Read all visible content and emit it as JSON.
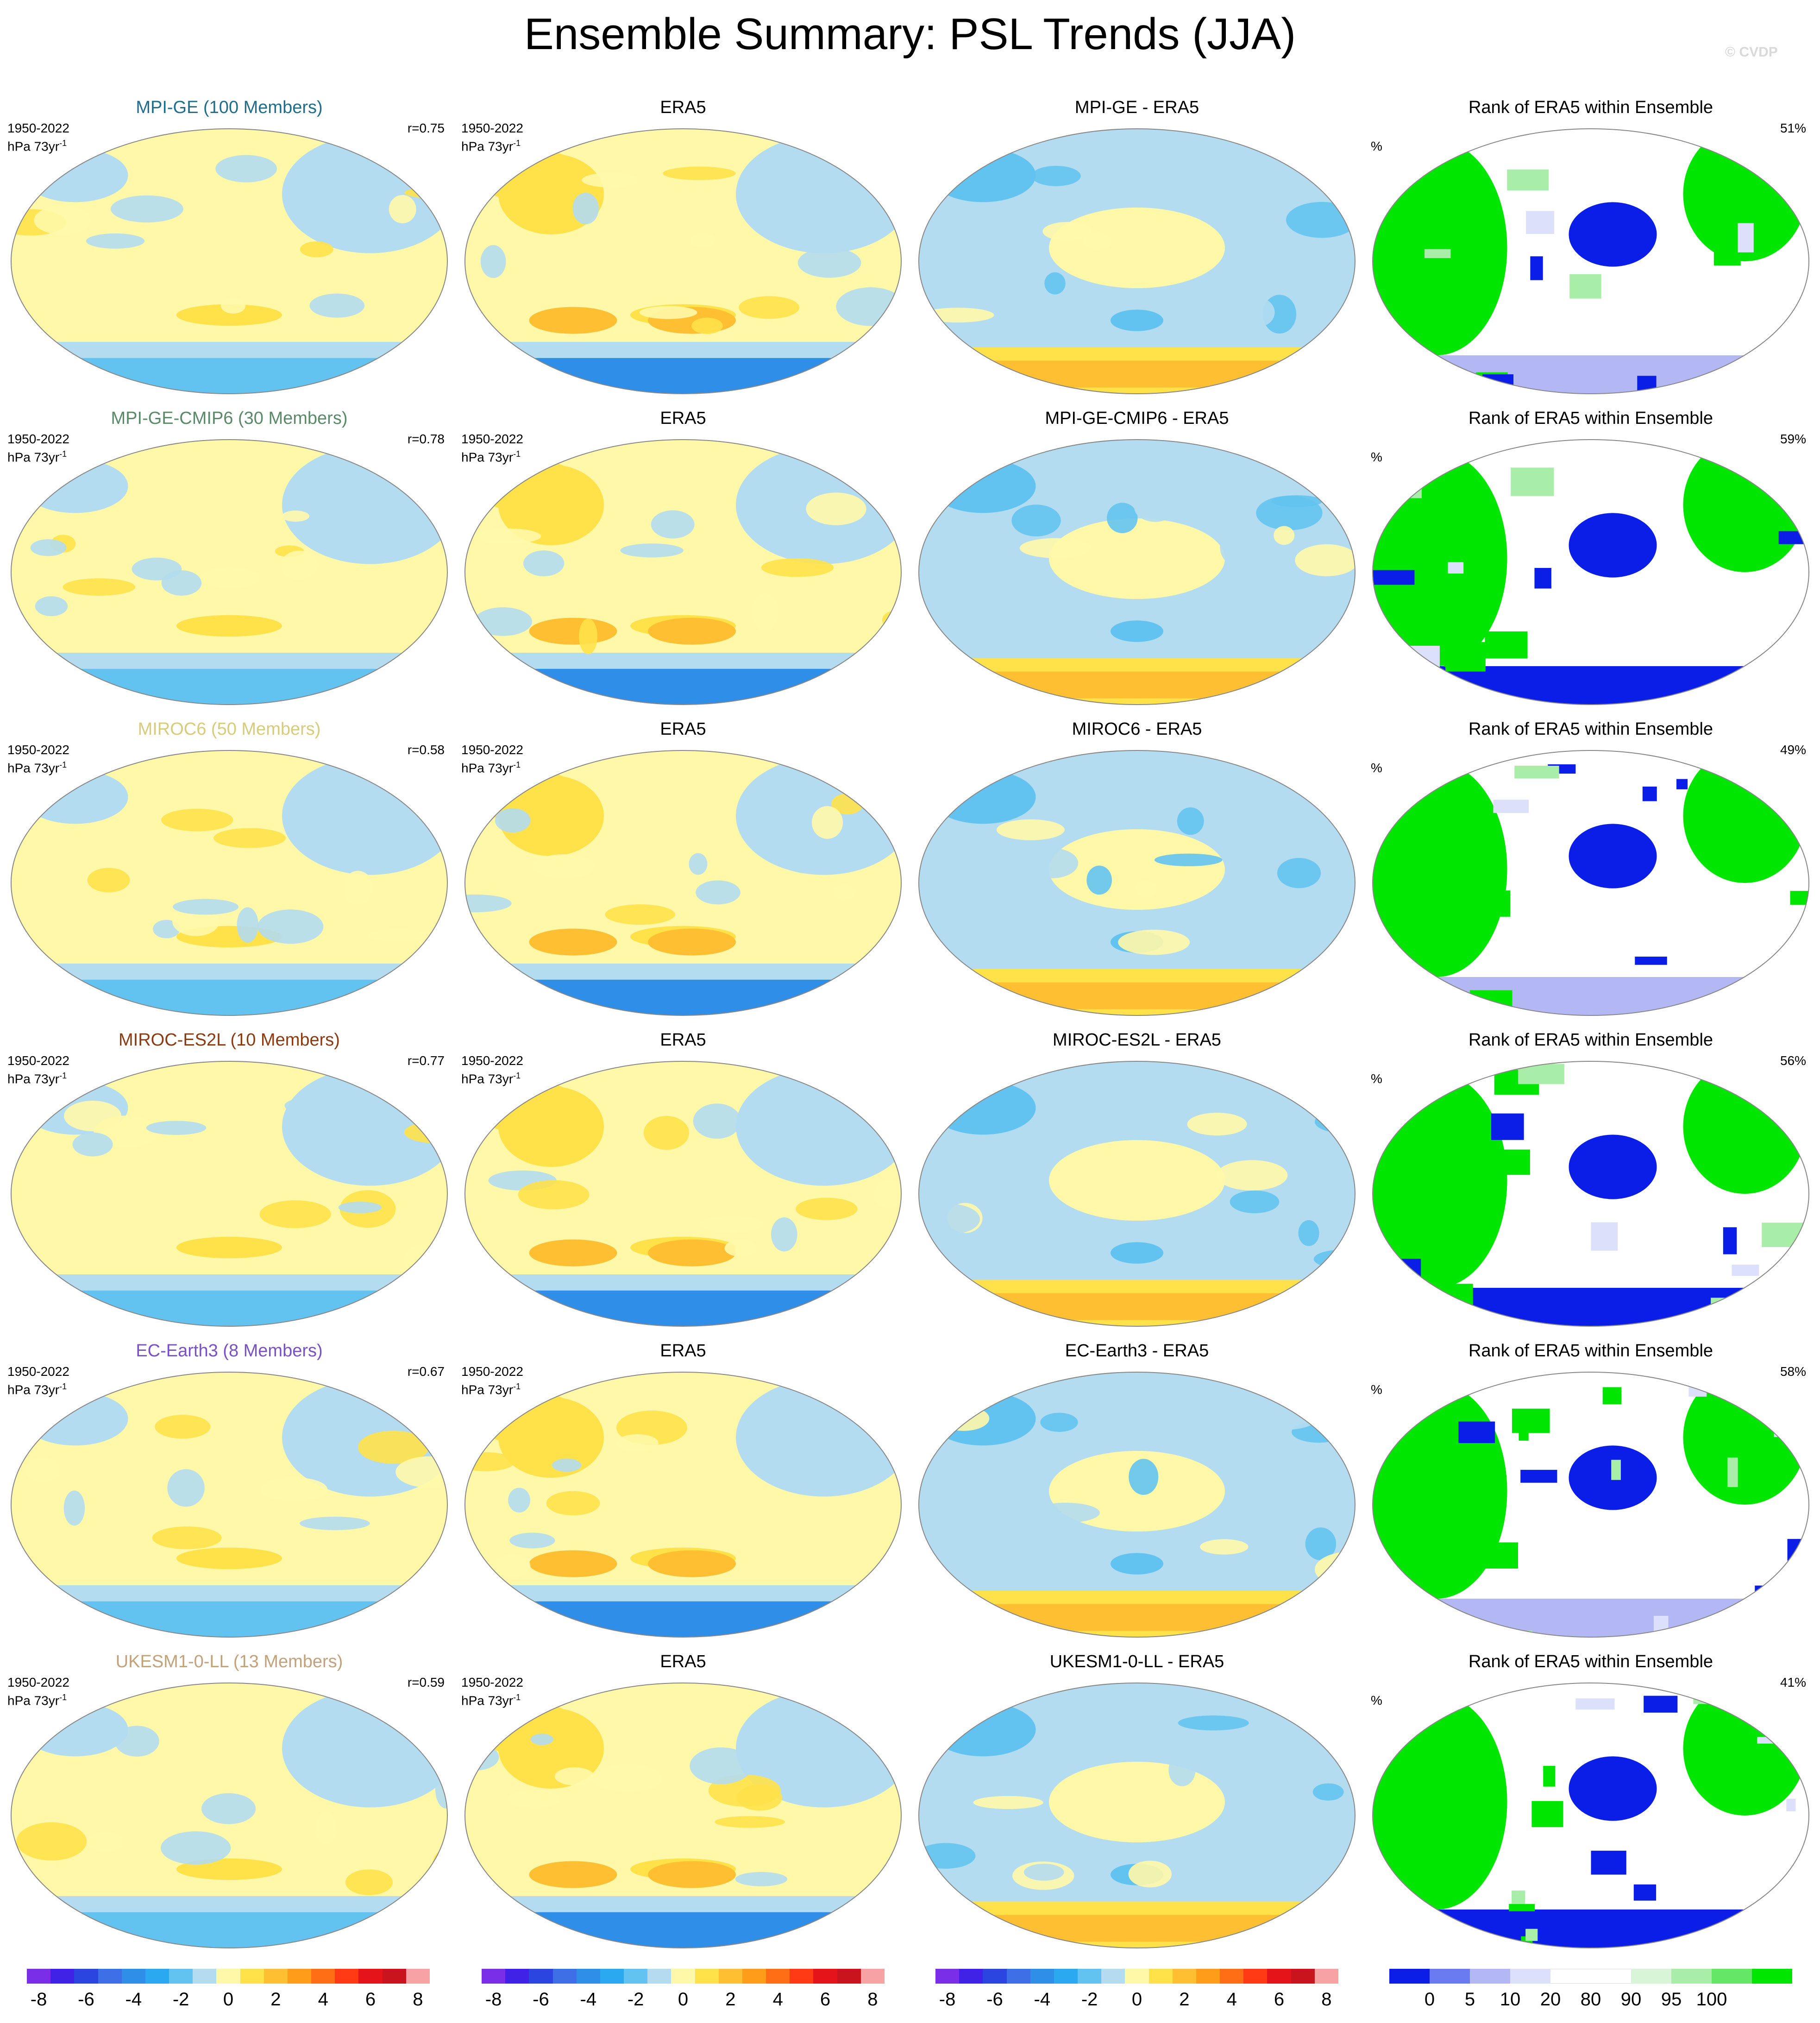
{
  "title": "Ensemble Summary: PSL Trends (JJA)",
  "watermark": "© CVDP",
  "period": "1950-2022",
  "units_prefix": "hPa 73yr",
  "units_sup": "-1",
  "rank_unit": "%",
  "rows": [
    {
      "model": "MPI-GE (100 Members)",
      "model_color": "#1f6e8c",
      "r": "r=0.75",
      "diff": "MPI-GE - ERA5",
      "rank_title": "Rank of ERA5 within Ensemble",
      "rank_pct": "51%",
      "obs": "ERA5"
    },
    {
      "model": "MPI-GE-CMIP6 (30 Members)",
      "model_color": "#5b8a6a",
      "r": "r=0.78",
      "diff": "MPI-GE-CMIP6 - ERA5",
      "rank_title": "Rank of ERA5 within Ensemble",
      "rank_pct": "59%",
      "obs": "ERA5"
    },
    {
      "model": "MIROC6 (50 Members)",
      "model_color": "#d6cc7a",
      "r": "r=0.58",
      "diff": "MIROC6 - ERA5",
      "rank_title": "Rank of ERA5 within Ensemble",
      "rank_pct": "49%",
      "obs": "ERA5"
    },
    {
      "model": "MIROC-ES2L (10 Members)",
      "model_color": "#8a3b12",
      "r": "r=0.77",
      "diff": "MIROC-ES2L - ERA5",
      "rank_title": "Rank of ERA5 within Ensemble",
      "rank_pct": "56%",
      "obs": "ERA5"
    },
    {
      "model": "EC-Earth3 (8 Members)",
      "model_color": "#7a52c8",
      "r": "r=0.67",
      "diff": "EC-Earth3 - ERA5",
      "rank_title": "Rank of ERA5 within Ensemble",
      "rank_pct": "58%",
      "obs": "ERA5"
    },
    {
      "model": "UKESM1-0-LL (13 Members)",
      "model_color": "#c2a27a",
      "r": "r=0.59",
      "diff": "UKESM1-0-LL - ERA5",
      "rank_title": "Rank of ERA5 within Ensemble",
      "rank_pct": "41%",
      "obs": "ERA5"
    }
  ],
  "trend_colorbar": {
    "colors": [
      "#7b2ee8",
      "#3f22e6",
      "#2a45e0",
      "#3f6fe6",
      "#2f8ee8",
      "#2aa9f0",
      "#63c3f0",
      "#b4dcf0",
      "#fff8a8",
      "#ffe14a",
      "#ffbf33",
      "#ff9d1a",
      "#ff6e14",
      "#ff3a14",
      "#e5141a",
      "#c9141e",
      "#f7a3a3"
    ],
    "labels": [
      "-8",
      "-6",
      "-4",
      "-2",
      "0",
      "2",
      "4",
      "6",
      "8"
    ]
  },
  "rank_colorbar": {
    "colors": [
      "#0a1ee8",
      "#6a7af0",
      "#b3b8f5",
      "#dde0fa",
      "#ffffff",
      "#ffffff",
      "#d8f5d8",
      "#a8eea8",
      "#66e666",
      "#00e600"
    ],
    "labels": [
      "0",
      "5",
      "10",
      "20",
      "80",
      "90",
      "95",
      "100"
    ]
  }
}
